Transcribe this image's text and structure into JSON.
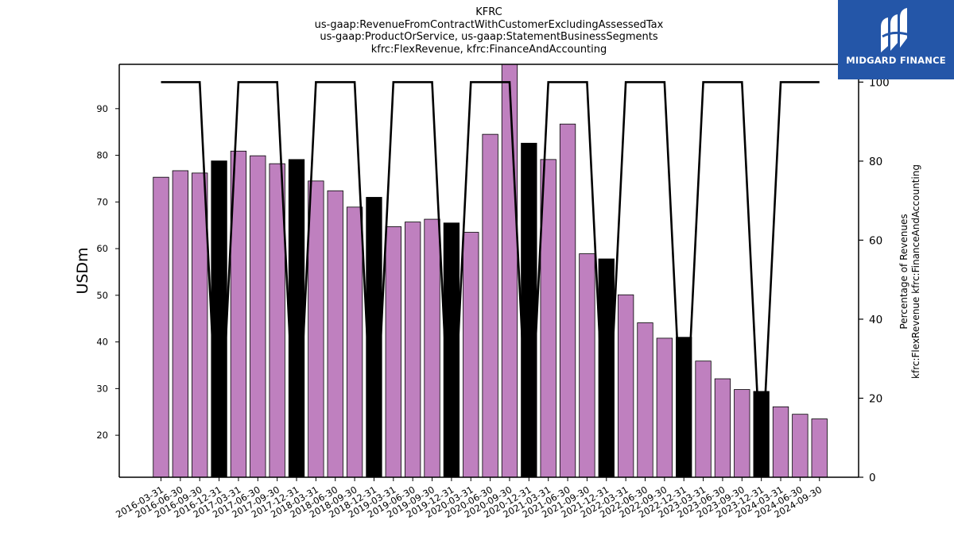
{
  "title": {
    "line1": "KFRC",
    "line2": "us-gaap:RevenueFromContractWithCustomerExcludingAssessedTax",
    "line3": "us-gaap:ProductOrService, us-gaap:StatementBusinessSegments",
    "line4": "kfrc:FlexRevenue, kfrc:FinanceAndAccounting"
  },
  "logo": {
    "text": "MIDGARD FINANCE",
    "color": "#2456a8"
  },
  "colors": {
    "bar": "#bf80bf",
    "highlight_bar": "#000000",
    "line": "#000000"
  },
  "chart_data": {
    "type": "bar",
    "categories": [
      "2016-03-31",
      "2016-06-30",
      "2016-09-30",
      "2016-12-31",
      "2017-03-31",
      "2017-06-30",
      "2017-09-30",
      "2017-12-31",
      "2018-03-31",
      "2018-06-30",
      "2018-09-30",
      "2018-12-31",
      "2019-03-31",
      "2019-06-30",
      "2019-09-30",
      "2019-12-31",
      "2020-03-31",
      "2020-06-30",
      "2020-09-30",
      "2020-12-31",
      "2021-03-31",
      "2021-06-30",
      "2021-09-30",
      "2021-12-31",
      "2022-03-31",
      "2022-06-30",
      "2022-09-30",
      "2022-12-31",
      "2023-03-31",
      "2023-06-30",
      "2023-09-30",
      "2023-12-31",
      "2024-03-31",
      "2024-06-30",
      "2024-09-30"
    ],
    "series": [
      {
        "values": [
          75.3,
          76.7,
          76.2,
          78.8,
          80.9,
          79.9,
          78.2,
          79.1,
          74.5,
          72.4,
          68.9,
          71.0,
          64.7,
          65.7,
          66.3,
          65.5,
          63.5,
          84.5,
          99.5,
          82.6,
          79.1,
          86.7,
          58.9,
          57.8,
          50.1,
          44.1,
          40.8,
          41.0,
          35.9,
          32.1,
          29.8,
          29.4,
          26.1,
          24.5,
          23.5
        ],
        "axis": "left"
      },
      {
        "values": [
          100,
          100,
          100,
          0,
          100,
          100,
          100,
          0,
          100,
          100,
          100,
          0,
          100,
          100,
          100,
          0,
          100,
          100,
          100,
          0,
          100,
          100,
          100,
          0,
          100,
          100,
          100,
          0,
          100,
          100,
          100,
          0,
          100,
          100,
          100
        ],
        "axis": "right",
        "type": "line"
      }
    ],
    "highlighted_categories": [
      "2016-12-31",
      "2017-12-31",
      "2018-12-31",
      "2019-12-31",
      "2020-12-31",
      "2021-12-31",
      "2022-12-31",
      "2023-12-31"
    ],
    "ylabel": "USDm",
    "y2label_line1": "Percentage of Revenues",
    "y2label_line2": "kfrc:FlexRevenue kfrc:FinanceAndAccounting",
    "ylim": [
      11,
      99.5
    ],
    "y2lim": [
      0,
      104.5
    ],
    "yticks": [
      20,
      30,
      40,
      50,
      60,
      70,
      80,
      90
    ],
    "y2ticks": [
      0,
      20,
      40,
      60,
      80,
      100
    ],
    "grid": false,
    "legend": "none"
  }
}
